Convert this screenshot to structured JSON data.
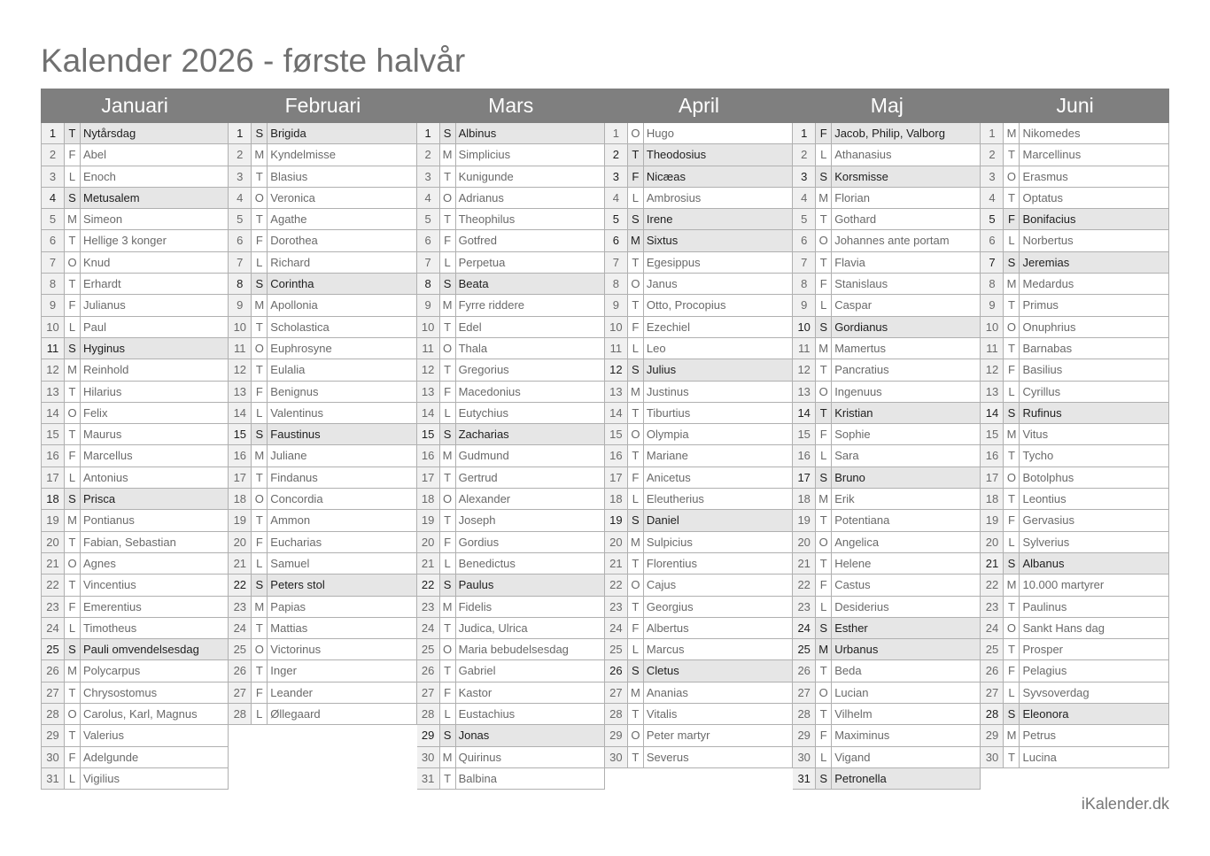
{
  "title": "Kalender 2026 - første halvår",
  "footer": "iKalender.dk",
  "colors": {
    "header_bg": "#7f7f7f",
    "highlight_bg": "#e6e6e6",
    "number_bg": "#f0f0f0"
  },
  "months": [
    {
      "name": "Januari",
      "highlight": [
        1,
        4,
        11,
        18,
        25
      ],
      "days": [
        [
          1,
          "T",
          "Nytårsdag"
        ],
        [
          2,
          "F",
          "Abel"
        ],
        [
          3,
          "L",
          "Enoch"
        ],
        [
          4,
          "S",
          "Metusalem"
        ],
        [
          5,
          "M",
          "Simeon"
        ],
        [
          6,
          "T",
          "Hellige 3 konger"
        ],
        [
          7,
          "O",
          "Knud"
        ],
        [
          8,
          "T",
          "Erhardt"
        ],
        [
          9,
          "F",
          "Julianus"
        ],
        [
          10,
          "L",
          "Paul"
        ],
        [
          11,
          "S",
          "Hyginus"
        ],
        [
          12,
          "M",
          "Reinhold"
        ],
        [
          13,
          "T",
          "Hilarius"
        ],
        [
          14,
          "O",
          "Felix"
        ],
        [
          15,
          "T",
          "Maurus"
        ],
        [
          16,
          "F",
          "Marcellus"
        ],
        [
          17,
          "L",
          "Antonius"
        ],
        [
          18,
          "S",
          "Prisca"
        ],
        [
          19,
          "M",
          "Pontianus"
        ],
        [
          20,
          "T",
          "Fabian, Sebastian"
        ],
        [
          21,
          "O",
          "Agnes"
        ],
        [
          22,
          "T",
          "Vincentius"
        ],
        [
          23,
          "F",
          "Emerentius"
        ],
        [
          24,
          "L",
          "Timotheus"
        ],
        [
          25,
          "S",
          "Pauli omvendelsesdag"
        ],
        [
          26,
          "M",
          "Polycarpus"
        ],
        [
          27,
          "T",
          "Chrysostomus"
        ],
        [
          28,
          "O",
          "Carolus, Karl, Magnus"
        ],
        [
          29,
          "T",
          "Valerius"
        ],
        [
          30,
          "F",
          "Adelgunde"
        ],
        [
          31,
          "L",
          "Vigilius"
        ]
      ]
    },
    {
      "name": "Februari",
      "highlight": [
        1,
        8,
        15,
        22
      ],
      "days": [
        [
          1,
          "S",
          "Brigida"
        ],
        [
          2,
          "M",
          "Kyndelmisse"
        ],
        [
          3,
          "T",
          "Blasius"
        ],
        [
          4,
          "O",
          "Veronica"
        ],
        [
          5,
          "T",
          "Agathe"
        ],
        [
          6,
          "F",
          "Dorothea"
        ],
        [
          7,
          "L",
          "Richard"
        ],
        [
          8,
          "S",
          "Corintha"
        ],
        [
          9,
          "M",
          "Apollonia"
        ],
        [
          10,
          "T",
          "Scholastica"
        ],
        [
          11,
          "O",
          "Euphrosyne"
        ],
        [
          12,
          "T",
          "Eulalia"
        ],
        [
          13,
          "F",
          "Benignus"
        ],
        [
          14,
          "L",
          "Valentinus"
        ],
        [
          15,
          "S",
          "Faustinus"
        ],
        [
          16,
          "M",
          "Juliane"
        ],
        [
          17,
          "T",
          "Findanus"
        ],
        [
          18,
          "O",
          "Concordia"
        ],
        [
          19,
          "T",
          "Ammon"
        ],
        [
          20,
          "F",
          "Eucharias"
        ],
        [
          21,
          "L",
          "Samuel"
        ],
        [
          22,
          "S",
          "Peters stol"
        ],
        [
          23,
          "M",
          "Papias"
        ],
        [
          24,
          "T",
          "Mattias"
        ],
        [
          25,
          "O",
          "Victorinus"
        ],
        [
          26,
          "T",
          "Inger"
        ],
        [
          27,
          "F",
          "Leander"
        ],
        [
          28,
          "L",
          "Øllegaard"
        ]
      ]
    },
    {
      "name": "Mars",
      "highlight": [
        1,
        8,
        15,
        22,
        29
      ],
      "days": [
        [
          1,
          "S",
          "Albinus"
        ],
        [
          2,
          "M",
          "Simplicius"
        ],
        [
          3,
          "T",
          "Kunigunde"
        ],
        [
          4,
          "O",
          "Adrianus"
        ],
        [
          5,
          "T",
          "Theophilus"
        ],
        [
          6,
          "F",
          "Gotfred"
        ],
        [
          7,
          "L",
          "Perpetua"
        ],
        [
          8,
          "S",
          "Beata"
        ],
        [
          9,
          "M",
          "Fyrre riddere"
        ],
        [
          10,
          "T",
          "Edel"
        ],
        [
          11,
          "O",
          "Thala"
        ],
        [
          12,
          "T",
          "Gregorius"
        ],
        [
          13,
          "F",
          "Macedonius"
        ],
        [
          14,
          "L",
          "Eutychius"
        ],
        [
          15,
          "S",
          "Zacharias"
        ],
        [
          16,
          "M",
          "Gudmund"
        ],
        [
          17,
          "T",
          "Gertrud"
        ],
        [
          18,
          "O",
          "Alexander"
        ],
        [
          19,
          "T",
          "Joseph"
        ],
        [
          20,
          "F",
          "Gordius"
        ],
        [
          21,
          "L",
          "Benedictus"
        ],
        [
          22,
          "S",
          "Paulus"
        ],
        [
          23,
          "M",
          "Fidelis"
        ],
        [
          24,
          "T",
          "Judica, Ulrica"
        ],
        [
          25,
          "O",
          "Maria bebudelsesdag"
        ],
        [
          26,
          "T",
          "Gabriel"
        ],
        [
          27,
          "F",
          "Kastor"
        ],
        [
          28,
          "L",
          "Eustachius"
        ],
        [
          29,
          "S",
          "Jonas"
        ],
        [
          30,
          "M",
          "Quirinus"
        ],
        [
          31,
          "T",
          "Balbina"
        ]
      ]
    },
    {
      "name": "April",
      "highlight": [
        2,
        3,
        5,
        6,
        12,
        19,
        26
      ],
      "days": [
        [
          1,
          "O",
          "Hugo"
        ],
        [
          2,
          "T",
          "Theodosius"
        ],
        [
          3,
          "F",
          "Nicæas"
        ],
        [
          4,
          "L",
          "Ambrosius"
        ],
        [
          5,
          "S",
          "Irene"
        ],
        [
          6,
          "M",
          "Sixtus"
        ],
        [
          7,
          "T",
          "Egesippus"
        ],
        [
          8,
          "O",
          "Janus"
        ],
        [
          9,
          "T",
          "Otto, Procopius"
        ],
        [
          10,
          "F",
          "Ezechiel"
        ],
        [
          11,
          "L",
          "Leo"
        ],
        [
          12,
          "S",
          "Julius"
        ],
        [
          13,
          "M",
          "Justinus"
        ],
        [
          14,
          "T",
          "Tiburtius"
        ],
        [
          15,
          "O",
          "Olympia"
        ],
        [
          16,
          "T",
          "Mariane"
        ],
        [
          17,
          "F",
          "Anicetus"
        ],
        [
          18,
          "L",
          "Eleutherius"
        ],
        [
          19,
          "S",
          "Daniel"
        ],
        [
          20,
          "M",
          "Sulpicius"
        ],
        [
          21,
          "T",
          "Florentius"
        ],
        [
          22,
          "O",
          "Cajus"
        ],
        [
          23,
          "T",
          "Georgius"
        ],
        [
          24,
          "F",
          "Albertus"
        ],
        [
          25,
          "L",
          "Marcus"
        ],
        [
          26,
          "S",
          "Cletus"
        ],
        [
          27,
          "M",
          "Ananias"
        ],
        [
          28,
          "T",
          "Vitalis"
        ],
        [
          29,
          "O",
          "Peter martyr"
        ],
        [
          30,
          "T",
          "Severus"
        ]
      ]
    },
    {
      "name": "Maj",
      "highlight": [
        1,
        3,
        10,
        14,
        17,
        24,
        25,
        31
      ],
      "days": [
        [
          1,
          "F",
          "Jacob, Philip, Valborg"
        ],
        [
          2,
          "L",
          "Athanasius"
        ],
        [
          3,
          "S",
          "Korsmisse"
        ],
        [
          4,
          "M",
          "Florian"
        ],
        [
          5,
          "T",
          "Gothard"
        ],
        [
          6,
          "O",
          "Johannes ante portam"
        ],
        [
          7,
          "T",
          "Flavia"
        ],
        [
          8,
          "F",
          "Stanislaus"
        ],
        [
          9,
          "L",
          "Caspar"
        ],
        [
          10,
          "S",
          "Gordianus"
        ],
        [
          11,
          "M",
          "Mamertus"
        ],
        [
          12,
          "T",
          "Pancratius"
        ],
        [
          13,
          "O",
          "Ingenuus"
        ],
        [
          14,
          "T",
          "Kristian"
        ],
        [
          15,
          "F",
          "Sophie"
        ],
        [
          16,
          "L",
          "Sara"
        ],
        [
          17,
          "S",
          "Bruno"
        ],
        [
          18,
          "M",
          "Erik"
        ],
        [
          19,
          "T",
          "Potentiana"
        ],
        [
          20,
          "O",
          "Angelica"
        ],
        [
          21,
          "T",
          "Helene"
        ],
        [
          22,
          "F",
          "Castus"
        ],
        [
          23,
          "L",
          "Desiderius"
        ],
        [
          24,
          "S",
          "Esther"
        ],
        [
          25,
          "M",
          "Urbanus"
        ],
        [
          26,
          "T",
          "Beda"
        ],
        [
          27,
          "O",
          "Lucian"
        ],
        [
          28,
          "T",
          "Vilhelm"
        ],
        [
          29,
          "F",
          "Maximinus"
        ],
        [
          30,
          "L",
          "Vigand"
        ],
        [
          31,
          "S",
          "Petronella"
        ]
      ]
    },
    {
      "name": "Juni",
      "highlight": [
        5,
        7,
        14,
        21,
        28
      ],
      "days": [
        [
          1,
          "M",
          "Nikomedes"
        ],
        [
          2,
          "T",
          "Marcellinus"
        ],
        [
          3,
          "O",
          "Erasmus"
        ],
        [
          4,
          "T",
          "Optatus"
        ],
        [
          5,
          "F",
          "Bonifacius"
        ],
        [
          6,
          "L",
          "Norbertus"
        ],
        [
          7,
          "S",
          "Jeremias"
        ],
        [
          8,
          "M",
          "Medardus"
        ],
        [
          9,
          "T",
          "Primus"
        ],
        [
          10,
          "O",
          "Onuphrius"
        ],
        [
          11,
          "T",
          "Barnabas"
        ],
        [
          12,
          "F",
          "Basilius"
        ],
        [
          13,
          "L",
          "Cyrillus"
        ],
        [
          14,
          "S",
          "Rufinus"
        ],
        [
          15,
          "M",
          "Vitus"
        ],
        [
          16,
          "T",
          "Tycho"
        ],
        [
          17,
          "O",
          "Botolphus"
        ],
        [
          18,
          "T",
          "Leontius"
        ],
        [
          19,
          "F",
          "Gervasius"
        ],
        [
          20,
          "L",
          "Sylverius"
        ],
        [
          21,
          "S",
          "Albanus"
        ],
        [
          22,
          "M",
          "10.000 martyrer"
        ],
        [
          23,
          "T",
          "Paulinus"
        ],
        [
          24,
          "O",
          "Sankt Hans dag"
        ],
        [
          25,
          "T",
          "Prosper"
        ],
        [
          26,
          "F",
          "Pelagius"
        ],
        [
          27,
          "L",
          "Syvsoverdag"
        ],
        [
          28,
          "S",
          "Eleonora"
        ],
        [
          29,
          "M",
          "Petrus"
        ],
        [
          30,
          "T",
          "Lucina"
        ]
      ]
    }
  ]
}
